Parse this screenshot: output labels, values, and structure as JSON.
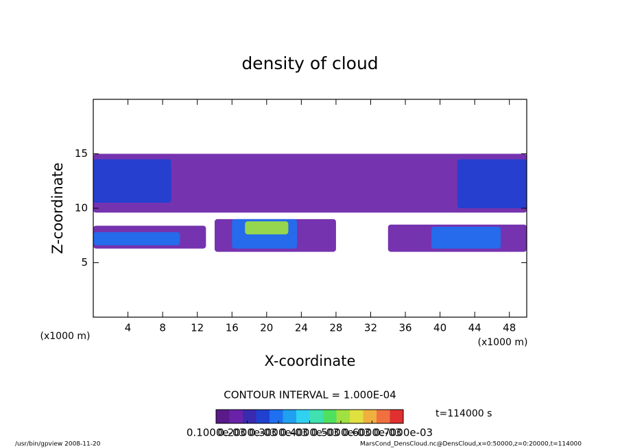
{
  "chart_data": {
    "type": "contour",
    "title": "density of cloud",
    "x_label": "X-coordinate",
    "y_label": "Z-coordinate",
    "x_unit": "(x1000 m)",
    "xlim": [
      0,
      50
    ],
    "xticks": [
      4,
      8,
      12,
      16,
      20,
      24,
      28,
      32,
      36,
      40,
      44,
      48
    ],
    "ylim": [
      0,
      20
    ],
    "yticks": [
      5,
      10,
      15
    ],
    "regions": [
      {
        "x": [
          0,
          50
        ],
        "z": [
          9.6,
          15
        ],
        "value": 0.00015
      },
      {
        "x": [
          0,
          9
        ],
        "z": [
          10.5,
          14.5
        ],
        "value": 0.00025
      },
      {
        "x": [
          42,
          50
        ],
        "z": [
          10,
          14.5
        ],
        "value": 0.00025
      },
      {
        "x": [
          0,
          13
        ],
        "z": [
          6.3,
          8.4
        ],
        "value": 0.00015
      },
      {
        "x": [
          0,
          10
        ],
        "z": [
          6.6,
          7.8
        ],
        "value": 0.0003
      },
      {
        "x": [
          14,
          28
        ],
        "z": [
          6,
          9
        ],
        "value": 0.00015
      },
      {
        "x": [
          16,
          23.5
        ],
        "z": [
          6.3,
          9
        ],
        "value": 0.0003
      },
      {
        "x": [
          17.5,
          22.5
        ],
        "z": [
          7.6,
          8.8
        ],
        "value": 0.0005
      },
      {
        "x": [
          34,
          50
        ],
        "z": [
          6,
          8.5
        ],
        "value": 0.00015
      },
      {
        "x": [
          39,
          47
        ],
        "z": [
          6.3,
          8.3
        ],
        "value": 0.0003
      }
    ],
    "contour_interval": "CONTOUR INTERVAL = 1.000E-04",
    "time_label": "t=114000 s",
    "colorbar": {
      "clim": [
        0.0001,
        0.0007
      ],
      "colors": [
        "#5a1a8a",
        "#6a22a8",
        "#3a2ab0",
        "#2040d0",
        "#1e70f0",
        "#20a0f0",
        "#30d0f0",
        "#40e0b0",
        "#50e060",
        "#a0e040",
        "#e0e040",
        "#f0b040",
        "#f07040",
        "#e03030"
      ],
      "ticks": [
        {
          "value": 0.0001,
          "label": "0.1000e-03"
        },
        {
          "value": 0.0002,
          "label": "0.2000e-03"
        },
        {
          "value": 0.0003,
          "label": "0.3000e-03"
        },
        {
          "value": 0.0004,
          "label": "0.4000e-03"
        },
        {
          "value": 0.0005,
          "label": "0.5000e-03"
        },
        {
          "value": 0.0006,
          "label": "0.6000e-03"
        },
        {
          "value": 0.0007,
          "label": "0.7000e-03"
        }
      ]
    },
    "footer_left": "/usr/bin/gpview  2008-11-20",
    "footer_right": "MarsCond_DensCloud.nc@DensCloud,x=0:50000,z=0:20000,t=114000"
  }
}
